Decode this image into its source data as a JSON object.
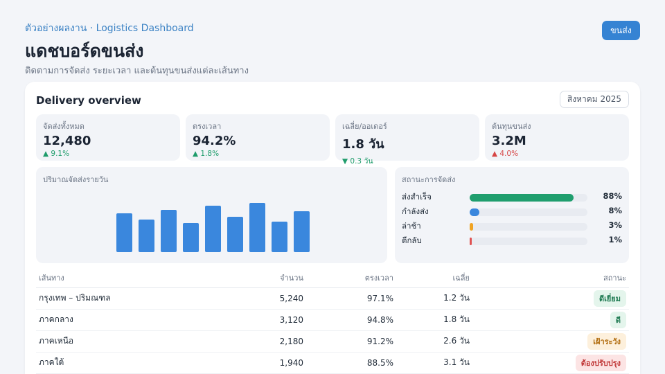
{
  "header": {
    "eyebrow": "ตัวอย่างผลงาน · Logistics Dashboard",
    "title": "แดชบอร์ดขนส่ง",
    "subtitle": "ติดตามการจัดส่ง ระยะเวลา และต้นทุนขนส่งแต่ละเส้นทาง",
    "cta_label": "ขนส่ง"
  },
  "card": {
    "title": "Delivery overview",
    "month": "สิงหาคม 2025"
  },
  "kpis": [
    {
      "label": "จัดส่งทั้งหมด",
      "value": "12,480",
      "delta": "▲ 9.1%",
      "tone": "up"
    },
    {
      "label": "ตรงเวลา",
      "value": "94.2%",
      "delta": "▲ 1.8%",
      "tone": "up"
    },
    {
      "label": "เฉลี่ย/ออเดอร์",
      "value": "1.8 วัน",
      "delta": "▼ 0.3 วัน",
      "tone": "down"
    },
    {
      "label": "ต้นทุนขนส่ง",
      "value": "3.2M",
      "delta": "▲ 4.0%",
      "tone": "bad"
    }
  ],
  "daily_chart": {
    "title": "ปริมาณจัดส่งรายวัน",
    "bar_color": "#3a87dd"
  },
  "chart_data": {
    "type": "bar",
    "title": "ปริมาณจัดส่งรายวัน",
    "categories": [
      "",
      "",
      "",
      "",
      "",
      "",
      "",
      "",
      ""
    ],
    "values": [
      56,
      47,
      61,
      42,
      67,
      51,
      71,
      44,
      59
    ],
    "ylim": [
      0,
      100
    ],
    "grid": false,
    "legend": "none"
  },
  "status": {
    "title": "สถานะการจัดส่ง",
    "rows": [
      {
        "label": "ส่งสำเร็จ",
        "pct": "88%",
        "value": 0.88,
        "color": "#1f9e6e"
      },
      {
        "label": "กำลังส่ง",
        "pct": "8%",
        "value": 0.08,
        "color": "#3a87dd"
      },
      {
        "label": "ล่าช้า",
        "pct": "3%",
        "value": 0.03,
        "color": "#f0a323"
      },
      {
        "label": "ตีกลับ",
        "pct": "1%",
        "value": 0.01,
        "color": "#e05252"
      }
    ]
  },
  "table": {
    "headers": [
      "เส้นทาง",
      "จำนวน",
      "ตรงเวลา",
      "เฉลี่ย",
      "สถานะ"
    ],
    "rows": [
      {
        "route": "กรุงเทพ – ปริมณฑล",
        "count": "5,240",
        "ontime": "97.1%",
        "avg": "1.2 วัน",
        "status": "ดีเยี่ยม",
        "badge_bg": "#e4f5ec",
        "badge_fg": "#1f7a52"
      },
      {
        "route": "ภาคกลาง",
        "count": "3,120",
        "ontime": "94.8%",
        "avg": "1.8 วัน",
        "status": "ดี",
        "badge_bg": "#e4f5ec",
        "badge_fg": "#1f7a52"
      },
      {
        "route": "ภาคเหนือ",
        "count": "2,180",
        "ontime": "91.2%",
        "avg": "2.6 วัน",
        "status": "เฝ้าระวัง",
        "badge_bg": "#fdf0dc",
        "badge_fg": "#b06b0c"
      },
      {
        "route": "ภาคใต้",
        "count": "1,940",
        "ontime": "88.5%",
        "avg": "3.1 วัน",
        "status": "ต้องปรับปรุง",
        "badge_bg": "#fce4e4",
        "badge_fg": "#c03737"
      }
    ]
  }
}
